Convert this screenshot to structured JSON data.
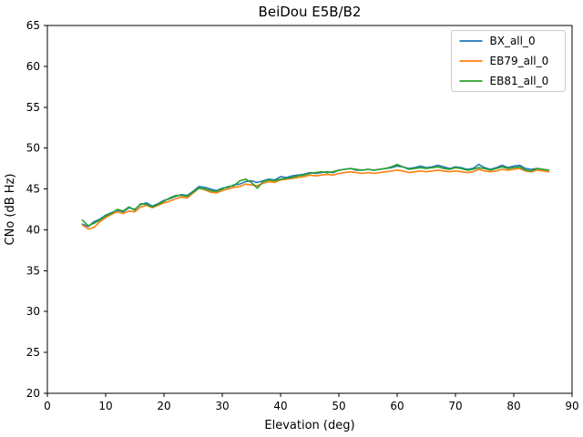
{
  "figure": {
    "background": "#ffffff",
    "text_color": "#000000",
    "spine_color": "#000000",
    "legend_border_color": "#cccccc"
  },
  "chart_data": {
    "type": "line",
    "title": "BeiDou E5B/B2",
    "xlabel": "Elevation (deg)",
    "ylabel": "CNo (dB Hz)",
    "xlim": [
      0,
      90
    ],
    "ylim": [
      20,
      65
    ],
    "x_ticks": [
      0,
      10,
      20,
      30,
      40,
      50,
      60,
      70,
      80,
      90
    ],
    "y_ticks": [
      20,
      25,
      30,
      35,
      40,
      45,
      50,
      55,
      60,
      65
    ],
    "grid": false,
    "legend_position": "upper right",
    "x": [
      6,
      7,
      8,
      9,
      10,
      11,
      12,
      13,
      14,
      15,
      16,
      17,
      18,
      19,
      20,
      21,
      22,
      23,
      24,
      25,
      26,
      27,
      28,
      29,
      30,
      31,
      32,
      33,
      34,
      35,
      36,
      37,
      38,
      39,
      40,
      41,
      42,
      43,
      44,
      45,
      46,
      47,
      48,
      49,
      50,
      51,
      52,
      53,
      54,
      55,
      56,
      57,
      58,
      59,
      60,
      61,
      62,
      63,
      64,
      65,
      66,
      67,
      68,
      69,
      70,
      71,
      72,
      73,
      74,
      75,
      76,
      77,
      78,
      79,
      80,
      81,
      82,
      83,
      84,
      85,
      86
    ],
    "series": [
      {
        "name": "BX_all_0",
        "color": "#1f77b4",
        "values": [
          40.7,
          40.4,
          41.0,
          41.3,
          41.8,
          42.1,
          42.4,
          42.2,
          42.7,
          42.5,
          43.1,
          43.3,
          42.9,
          43.2,
          43.6,
          43.8,
          44.1,
          44.3,
          44.2,
          44.7,
          45.3,
          45.2,
          45.0,
          44.8,
          45.1,
          45.2,
          45.5,
          45.6,
          45.9,
          46.0,
          45.8,
          46.0,
          46.2,
          46.1,
          46.5,
          46.4,
          46.6,
          46.7,
          46.8,
          47.0,
          46.9,
          47.0,
          47.1,
          47.0,
          47.3,
          47.4,
          47.5,
          47.3,
          47.3,
          47.4,
          47.3,
          47.4,
          47.5,
          47.6,
          47.8,
          47.7,
          47.5,
          47.6,
          47.8,
          47.6,
          47.7,
          47.9,
          47.7,
          47.5,
          47.7,
          47.6,
          47.4,
          47.5,
          48.0,
          47.6,
          47.4,
          47.6,
          47.9,
          47.6,
          47.8,
          47.9,
          47.5,
          47.4,
          47.5,
          47.4,
          47.3
        ]
      },
      {
        "name": "EB79_all_0",
        "color": "#ff7f0e",
        "values": [
          40.6,
          40.1,
          40.3,
          41.0,
          41.5,
          41.9,
          42.2,
          42.0,
          42.3,
          42.2,
          42.8,
          43.0,
          42.7,
          43.0,
          43.3,
          43.5,
          43.8,
          44.0,
          43.9,
          44.5,
          45.1,
          44.9,
          44.6,
          44.5,
          44.8,
          45.0,
          45.2,
          45.3,
          45.6,
          45.5,
          45.4,
          45.7,
          45.9,
          45.8,
          46.1,
          46.2,
          46.3,
          46.4,
          46.5,
          46.7,
          46.6,
          46.7,
          46.8,
          46.7,
          46.9,
          47.0,
          47.1,
          47.0,
          46.9,
          47.0,
          46.9,
          47.0,
          47.1,
          47.2,
          47.3,
          47.2,
          47.0,
          47.1,
          47.2,
          47.1,
          47.2,
          47.3,
          47.2,
          47.1,
          47.2,
          47.1,
          47.0,
          47.1,
          47.4,
          47.2,
          47.1,
          47.2,
          47.4,
          47.3,
          47.4,
          47.5,
          47.2,
          47.1,
          47.3,
          47.2,
          47.1
        ]
      },
      {
        "name": "EB81_all_0",
        "color": "#2ca02c",
        "values": [
          41.2,
          40.5,
          40.8,
          41.2,
          41.7,
          42.0,
          42.5,
          42.3,
          42.8,
          42.4,
          43.2,
          43.1,
          42.8,
          43.1,
          43.5,
          43.9,
          44.2,
          44.2,
          44.1,
          44.6,
          45.1,
          45.0,
          44.8,
          44.7,
          45.0,
          45.3,
          45.4,
          46.0,
          46.2,
          45.8,
          45.1,
          45.9,
          46.1,
          46.0,
          46.2,
          46.3,
          46.4,
          46.6,
          46.7,
          46.9,
          47.0,
          47.1,
          47.0,
          47.1,
          47.3,
          47.4,
          47.5,
          47.4,
          47.3,
          47.4,
          47.3,
          47.4,
          47.5,
          47.7,
          48.0,
          47.7,
          47.4,
          47.5,
          47.6,
          47.5,
          47.6,
          47.7,
          47.5,
          47.4,
          47.6,
          47.5,
          47.3,
          47.4,
          47.6,
          47.5,
          47.3,
          47.5,
          47.7,
          47.5,
          47.6,
          47.7,
          47.3,
          47.2,
          47.5,
          47.4,
          47.3
        ]
      }
    ]
  }
}
